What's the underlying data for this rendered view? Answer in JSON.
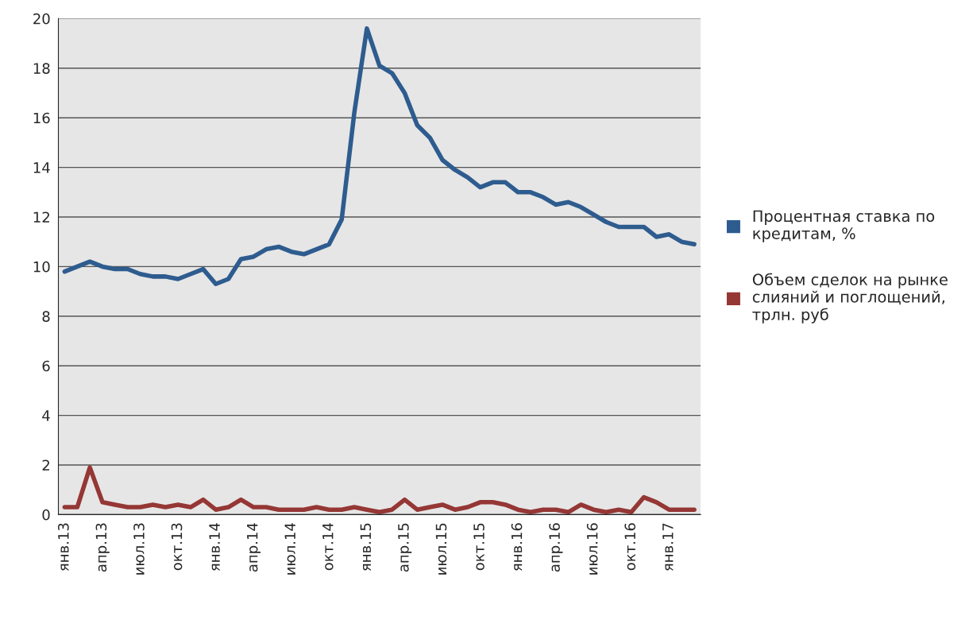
{
  "chart_data": {
    "type": "line",
    "categories": [
      "янв.13",
      null,
      null,
      "апр.13",
      null,
      null,
      "июл.13",
      null,
      null,
      "окт.13",
      null,
      null,
      "янв.14",
      null,
      null,
      "апр.14",
      null,
      null,
      "июл.14",
      null,
      null,
      "окт.14",
      null,
      null,
      "янв.15",
      null,
      null,
      "апр.15",
      null,
      null,
      "июл.15",
      null,
      null,
      "окт.15",
      null,
      null,
      "янв.16",
      null,
      null,
      "апр.16",
      null,
      null,
      "июл.16",
      null,
      null,
      "окт.16",
      null,
      null,
      "янв.17",
      null,
      null
    ],
    "series": [
      {
        "name": "Процентная ставка по кредитам, %",
        "color": "#2e5c8f",
        "values": [
          9.8,
          10.0,
          10.2,
          10.0,
          9.9,
          9.9,
          9.7,
          9.6,
          9.6,
          9.5,
          9.7,
          9.9,
          9.3,
          9.5,
          10.3,
          10.4,
          10.7,
          10.8,
          10.6,
          10.5,
          10.7,
          10.9,
          11.9,
          16.2,
          19.6,
          18.1,
          17.8,
          17.0,
          15.7,
          15.2,
          14.3,
          13.9,
          13.6,
          13.2,
          13.4,
          13.4,
          13.0,
          13.0,
          12.8,
          12.5,
          12.6,
          12.4,
          12.1,
          11.8,
          11.6,
          11.6,
          11.6,
          11.2,
          11.3,
          11.0,
          10.9
        ]
      },
      {
        "name": "Объем сделок на рынке слияний и поглощений, трлн. руб",
        "color": "#953735",
        "values": [
          0.3,
          0.3,
          1.9,
          0.5,
          0.4,
          0.3,
          0.3,
          0.4,
          0.3,
          0.4,
          0.3,
          0.6,
          0.2,
          0.3,
          0.6,
          0.3,
          0.3,
          0.2,
          0.2,
          0.2,
          0.3,
          0.2,
          0.2,
          0.3,
          0.2,
          0.1,
          0.2,
          0.6,
          0.2,
          0.3,
          0.4,
          0.2,
          0.3,
          0.5,
          0.5,
          0.4,
          0.2,
          0.1,
          0.2,
          0.2,
          0.1,
          0.4,
          0.2,
          0.1,
          0.2,
          0.1,
          0.7,
          0.5,
          0.2,
          0.2,
          0.2
        ]
      }
    ],
    "ylim": [
      0,
      20
    ],
    "yticks": [
      0,
      2,
      4,
      6,
      8,
      10,
      12,
      14,
      16,
      18,
      20
    ],
    "grid": "y",
    "legend": "right",
    "marker": "none",
    "line_style": "solid"
  }
}
